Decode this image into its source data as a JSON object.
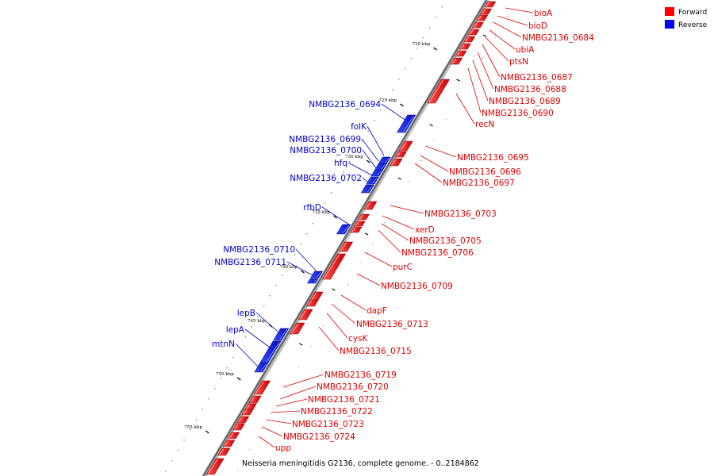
{
  "legend": {
    "forward_label": "Forward",
    "reverse_label": "Reverse",
    "forward_color": "#ff0000",
    "reverse_color": "#0000ff"
  },
  "caption": "Neisseria meningitidis G2136, complete genome. - 0..2184862",
  "ticks": [
    "720 kbp",
    "725 kbp",
    "730 kbp",
    "735 kbp",
    "740 kbp",
    "745 kbp",
    "750 kbp",
    "755 kbp"
  ],
  "forward_labels": [
    "bioA",
    "bioD",
    "NMBG2136_0684",
    "ubiA",
    "ptsN",
    "NMBG2136_0687",
    "NMBG2136_0688",
    "NMBG2136_0689",
    "NMBG2136_0690",
    "recN",
    "NMBG2136_0695",
    "NMBG2136_0696",
    "NMBG2136_0697",
    "NMBG2136_0703",
    "xerD",
    "NMBG2136_0705",
    "NMBG2136_0706",
    "purC",
    "NMBG2136_0709",
    "dapF",
    "NMBG2136_0713",
    "cysK",
    "NMBG2136_0715",
    "NMBG2136_0719",
    "NMBG2136_0720",
    "NMBG2136_0721",
    "NMBG2136_0722",
    "NMBG2136_0723",
    "NMBG2136_0724",
    "upp"
  ],
  "reverse_labels": [
    "NMBG2136_0694",
    "folK",
    "NMBG2136_0699",
    "NMBG2136_0700",
    "hfq",
    "NMBG2136_0702",
    "rfbD",
    "NMBG2136_0710",
    "NMBG2136_0711",
    "lepB",
    "lepA",
    "mtnN"
  ]
}
